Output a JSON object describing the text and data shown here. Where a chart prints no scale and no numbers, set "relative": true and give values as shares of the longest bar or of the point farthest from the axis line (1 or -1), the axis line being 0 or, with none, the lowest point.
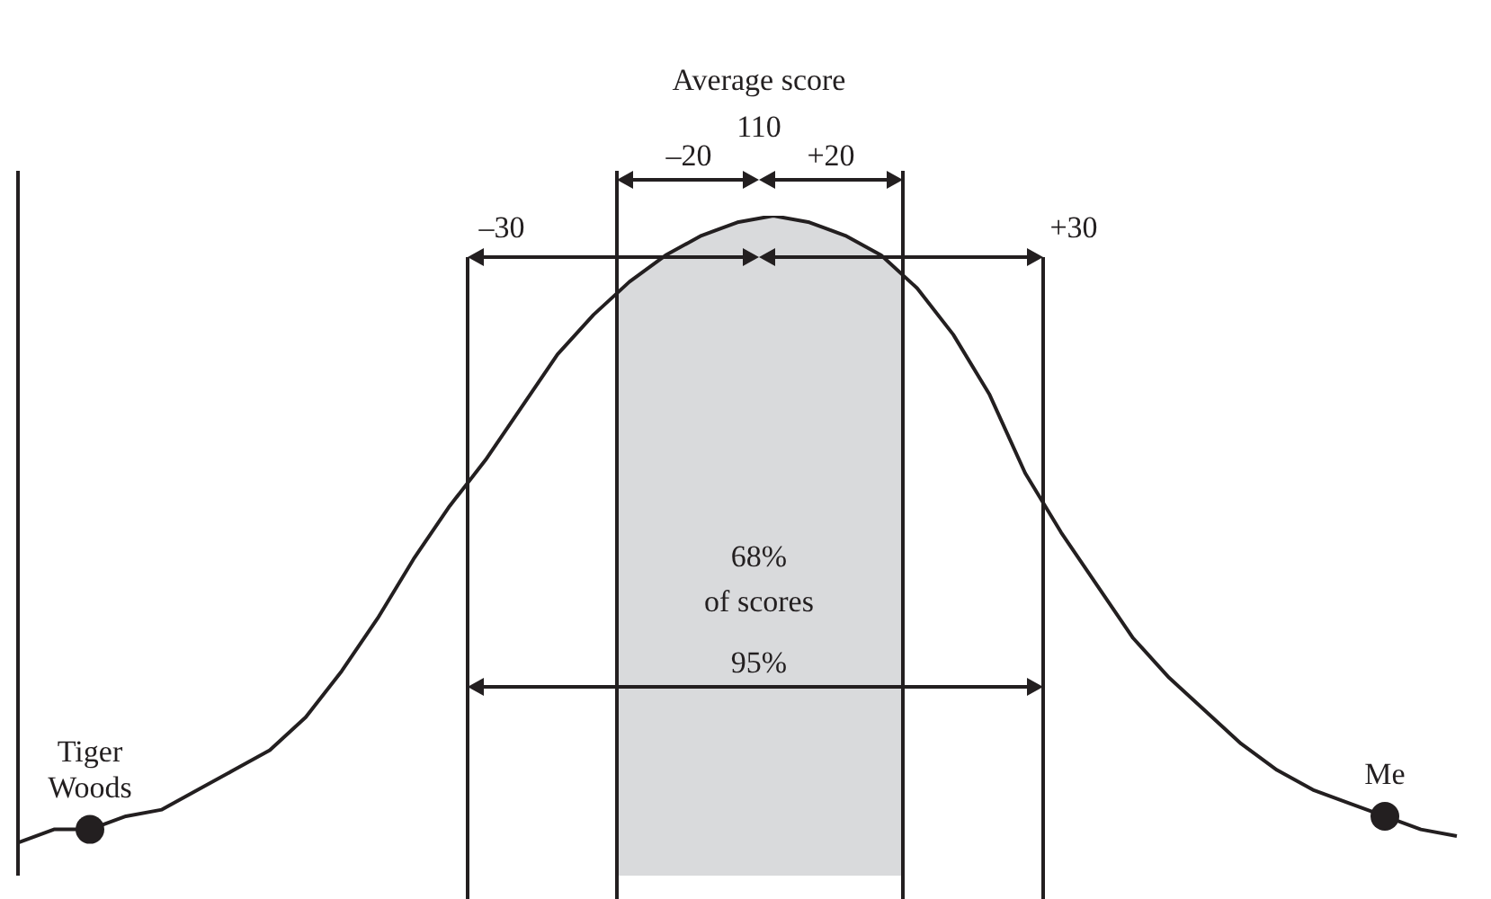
{
  "chart_data": {
    "type": "line",
    "relative": true,
    "legend": false,
    "marker": "none",
    "categories": [
      null,
      null,
      null,
      null,
      null,
      null,
      null,
      null,
      null,
      null,
      null,
      null,
      null,
      null,
      null,
      null,
      null,
      null,
      null,
      null,
      null,
      null,
      null,
      null,
      null,
      null,
      null,
      null,
      null,
      null,
      null,
      null,
      null,
      null,
      null,
      null,
      null,
      null,
      null,
      null,
      null
    ],
    "series": [
      {
        "color": "#231f20",
        "values": [
          0.05,
          0.07,
          0.07,
          0.09,
          0.1,
          0.13,
          0.16,
          0.19,
          0.24,
          0.31,
          0.39,
          0.48,
          0.56,
          0.63,
          0.71,
          0.79,
          0.85,
          0.9,
          0.94,
          0.97,
          0.99,
          1.0,
          0.99,
          0.97,
          0.94,
          0.89,
          0.82,
          0.73,
          0.61,
          0.52,
          0.44,
          0.36,
          0.3,
          0.25,
          0.2,
          0.16,
          0.13,
          0.11,
          0.09,
          0.07,
          0.06
        ]
      }
    ],
    "annotations": [
      "Average score",
      "110",
      "–20",
      "+20",
      "–30",
      "+30",
      "68%",
      "of scores",
      "95%",
      "Tiger Woods",
      "Me"
    ]
  }
}
